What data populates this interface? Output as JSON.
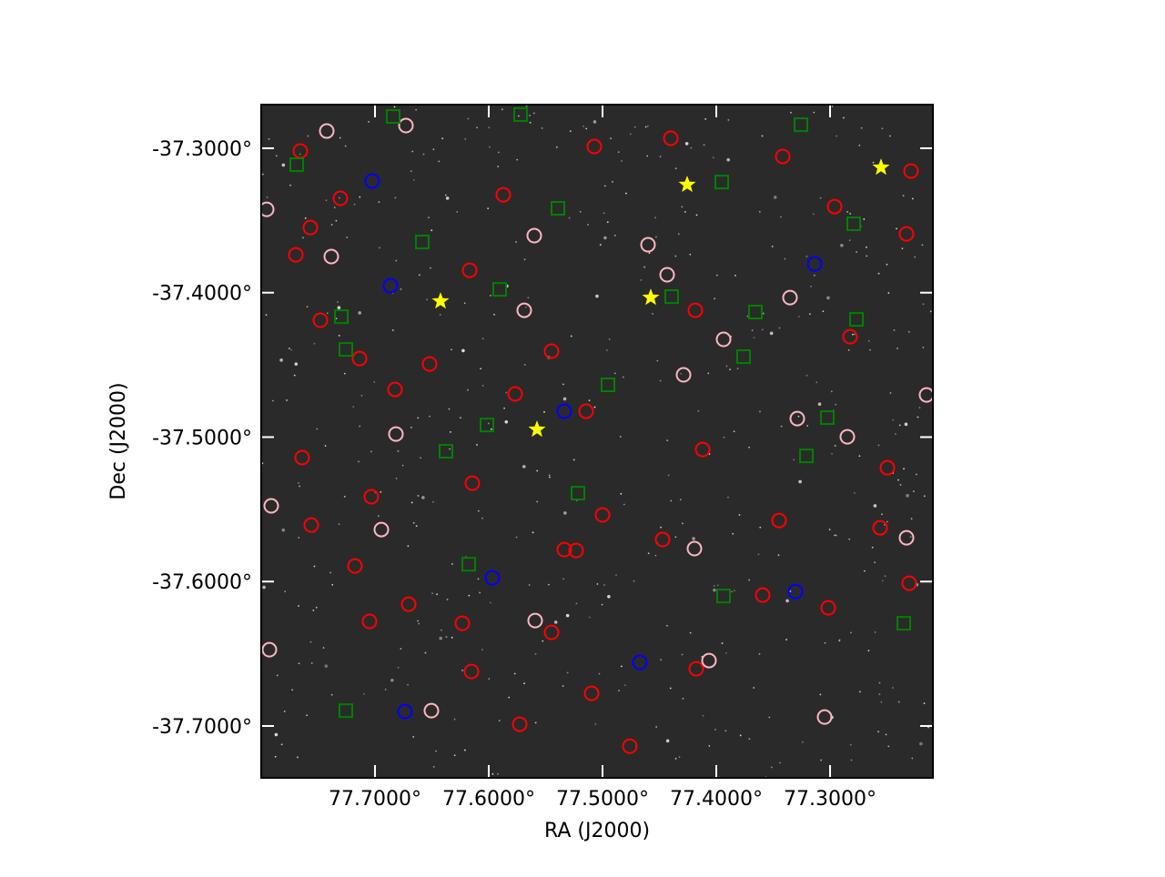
{
  "chart_data": {
    "type": "scatter",
    "xlabel": "RA (J2000)",
    "ylabel": "Dec (J2000)",
    "xlim": [
      77.8,
      77.2096
    ],
    "ylim": [
      -37.7359,
      -37.2698
    ],
    "xticks": [
      {
        "value": 77.7,
        "label": "77.7000°"
      },
      {
        "value": 77.6,
        "label": "77.6000°"
      },
      {
        "value": 77.5,
        "label": "77.5000°"
      },
      {
        "value": 77.4,
        "label": "77.4000°"
      },
      {
        "value": 77.3,
        "label": "77.3000°"
      }
    ],
    "yticks": [
      {
        "value": -37.3,
        "label": "-37.3000°"
      },
      {
        "value": -37.4,
        "label": "-37.4000°"
      },
      {
        "value": -37.5,
        "label": "-37.5000°"
      },
      {
        "value": -37.6,
        "label": "-37.6000°"
      },
      {
        "value": -37.7,
        "label": "-37.7000°"
      }
    ],
    "background": "#2a2a2a",
    "series": [
      {
        "color": "#ff0000",
        "marker": "circle",
        "x": [
          77.7656,
          77.7304,
          77.7568,
          77.7696,
          77.748,
          77.7136,
          77.6824,
          77.764,
          77.7032,
          77.756,
          77.7176,
          77.7048,
          77.6704,
          77.6232,
          77.6152,
          77.5728,
          77.5096,
          77.476,
          77.4176,
          77.3592,
          77.3016,
          77.2304,
          77.256,
          77.3448,
          77.412,
          77.4472,
          77.5,
          77.5336,
          77.6144,
          77.652,
          77.6168,
          77.5872,
          77.5072,
          77.44,
          77.3416,
          77.296,
          77.2288,
          77.2328,
          77.2824,
          77.2496,
          77.4184,
          77.5448,
          77.5144,
          77.5768,
          77.5232,
          77.5448
        ],
        "y": [
          -37.3019,
          -37.3347,
          -37.3549,
          -37.3738,
          -37.4191,
          -37.4456,
          -37.467,
          -37.5142,
          -37.5413,
          -37.5609,
          -37.5892,
          -37.6276,
          -37.6157,
          -37.6289,
          -37.6623,
          -37.6988,
          -37.6774,
          -37.714,
          -37.6604,
          -37.6094,
          -37.6182,
          -37.6012,
          -37.5628,
          -37.5577,
          -37.5086,
          -37.5709,
          -37.5539,
          -37.5779,
          -37.5319,
          -37.4494,
          -37.3845,
          -37.3322,
          -37.2988,
          -37.2931,
          -37.3057,
          -37.3404,
          -37.3158,
          -37.3593,
          -37.4305,
          -37.5212,
          -37.4122,
          -37.4405,
          -37.4821,
          -37.4701,
          -37.5785,
          -37.6352
        ]
      },
      {
        "color": "#ffb6c1",
        "marker": "circle",
        "x": [
          77.7424,
          77.7952,
          77.7384,
          77.6728,
          77.56,
          77.46,
          77.4432,
          77.4288,
          77.3936,
          77.3352,
          77.3288,
          77.2848,
          77.2152,
          77.2328,
          77.3048,
          77.4064,
          77.4192,
          77.5592,
          77.6504,
          77.7912,
          77.7928,
          77.6944,
          77.6816,
          77.5688
        ],
        "y": [
          -37.2881,
          -37.3423,
          -37.375,
          -37.2843,
          -37.3605,
          -37.3668,
          -37.3876,
          -37.4569,
          -37.4323,
          -37.4034,
          -37.4872,
          -37.4998,
          -37.4708,
          -37.5697,
          -37.6938,
          -37.6547,
          -37.5772,
          -37.627,
          -37.6894,
          -37.5476,
          -37.6472,
          -37.564,
          -37.4979,
          -37.4122
        ]
      },
      {
        "color": "#008000",
        "marker": "square",
        "x": [
          77.684,
          77.572,
          77.3256,
          77.7688,
          77.5392,
          77.3952,
          77.2792,
          77.6584,
          77.5904,
          77.4392,
          77.3656,
          77.7296,
          77.2768,
          77.7256,
          77.376,
          77.4952,
          77.3024,
          77.6016,
          77.6376,
          77.3208,
          77.5216,
          77.6176,
          77.3936,
          77.2352,
          77.7256
        ],
        "y": [
          -37.278,
          -37.2767,
          -37.2837,
          -37.3114,
          -37.3416,
          -37.3234,
          -37.3523,
          -37.3649,
          -37.3977,
          -37.4027,
          -37.4134,
          -37.4166,
          -37.4185,
          -37.4393,
          -37.4443,
          -37.4638,
          -37.4865,
          -37.4916,
          -37.5098,
          -37.513,
          -37.5388,
          -37.588,
          -37.61,
          -37.6289,
          -37.6894
        ]
      },
      {
        "color": "#0000ff",
        "marker": "circle",
        "x": [
          77.7024,
          77.6864,
          77.5336,
          77.3136,
          77.5968,
          77.3304,
          77.4672,
          77.6736
        ],
        "y": [
          -37.3227,
          -37.3952,
          -37.4821,
          -37.3801,
          -37.5974,
          -37.6069,
          -37.656,
          -37.69
        ]
      },
      {
        "color": "#ffff00",
        "marker": "star",
        "x": [
          77.6424,
          77.4256,
          77.4576,
          77.5576,
          77.2552
        ],
        "y": [
          -37.4059,
          -37.3252,
          -37.4034,
          -37.4947,
          -37.3133
        ]
      }
    ]
  }
}
